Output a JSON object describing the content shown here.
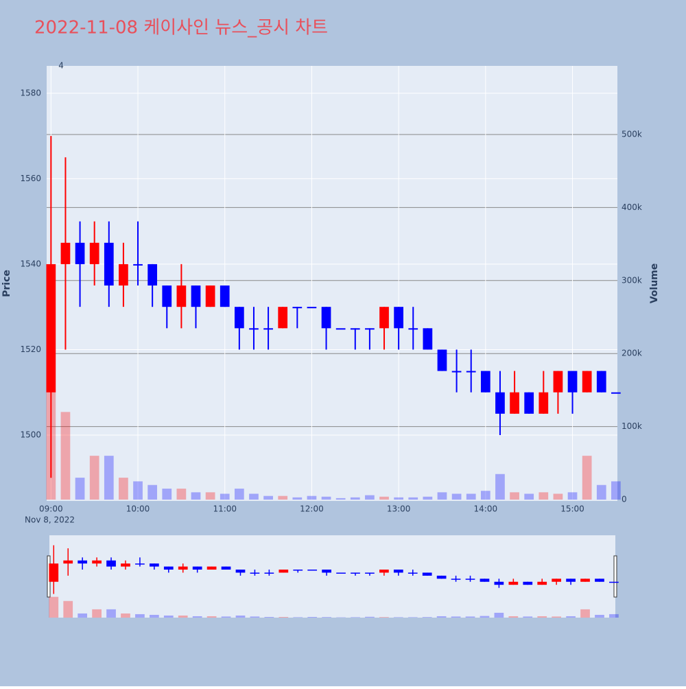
{
  "chart_data": {
    "type": "candlestick",
    "title": "2022-11-08 케이사인 뉴스_공시 차트",
    "x_date_label": "Nov 8, 2022",
    "y_label": "Price",
    "y2_label": "Volume",
    "annotation": {
      "text": "4",
      "x": "09:07"
    },
    "increasing_color": "#ff0000",
    "decreasing_color": "#0000ff",
    "x": [
      "09:00",
      "09:10",
      "09:20",
      "09:30",
      "09:40",
      "09:50",
      "10:00",
      "10:10",
      "10:20",
      "10:30",
      "10:40",
      "10:50",
      "11:00",
      "11:10",
      "11:20",
      "11:30",
      "11:40",
      "11:50",
      "12:00",
      "12:10",
      "12:20",
      "12:30",
      "12:40",
      "12:50",
      "13:00",
      "13:10",
      "13:20",
      "13:30",
      "13:40",
      "13:50",
      "14:00",
      "14:10",
      "14:20",
      "14:30",
      "14:40",
      "14:50",
      "15:00",
      "15:10",
      "15:20",
      "15:30"
    ],
    "open": [
      1510,
      1540,
      1545,
      1540,
      1545,
      1535,
      1540,
      1540,
      1535,
      1530,
      1535,
      1530,
      1535,
      1530,
      1525,
      1525,
      1525,
      1530,
      1530,
      1530,
      1525,
      1525,
      1525,
      1525,
      1530,
      1525,
      1525,
      1520,
      1515,
      1515,
      1515,
      1510,
      1505,
      1510,
      1505,
      1510,
      1515,
      1510,
      1515,
      1510
    ],
    "high": [
      1570,
      1565,
      1550,
      1550,
      1550,
      1545,
      1550,
      1540,
      1535,
      1540,
      1535,
      1535,
      1535,
      1530,
      1530,
      1530,
      1530,
      1530,
      1530,
      1530,
      1525,
      1525,
      1525,
      1530,
      1530,
      1530,
      1525,
      1520,
      1520,
      1520,
      1515,
      1515,
      1515,
      1510,
      1515,
      1515,
      1515,
      1515,
      1515,
      1510
    ],
    "low": [
      1490,
      1520,
      1530,
      1535,
      1530,
      1530,
      1535,
      1530,
      1525,
      1525,
      1525,
      1530,
      1530,
      1520,
      1520,
      1520,
      1525,
      1525,
      1530,
      1520,
      1525,
      1520,
      1520,
      1520,
      1520,
      1520,
      1520,
      1515,
      1510,
      1510,
      1510,
      1500,
      1505,
      1505,
      1505,
      1505,
      1505,
      1510,
      1510,
      1510
    ],
    "close": [
      1540,
      1545,
      1540,
      1545,
      1535,
      1540,
      1540,
      1535,
      1530,
      1535,
      1530,
      1535,
      1530,
      1525,
      1525,
      1525,
      1530,
      1530,
      1530,
      1525,
      1525,
      1525,
      1525,
      1530,
      1525,
      1525,
      1520,
      1515,
      1515,
      1515,
      1510,
      1505,
      1510,
      1505,
      1510,
      1515,
      1510,
      1515,
      1510,
      1510
    ],
    "volume": [
      150000,
      120000,
      30000,
      60000,
      60000,
      30000,
      25000,
      20000,
      15000,
      15000,
      10000,
      10000,
      8000,
      15000,
      8000,
      5000,
      5000,
      3000,
      5000,
      4000,
      2000,
      3000,
      6000,
      4000,
      3000,
      3000,
      4000,
      10000,
      8000,
      8000,
      12000,
      35000,
      10000,
      8000,
      10000,
      8000,
      10000,
      60000,
      20000,
      25000
    ],
    "xlim": [
      "08:57",
      "15:31"
    ],
    "xticks": [
      "09:00",
      "10:00",
      "11:00",
      "12:00",
      "13:00",
      "14:00",
      "15:00"
    ],
    "ylim": [
      1484.9,
      1586.4
    ],
    "yticks": [
      1500,
      1520,
      1540,
      1560,
      1580
    ],
    "y2lim": [
      0,
      594000
    ],
    "y2ticks": [
      0,
      {
        "value": 100000,
        "label": "100k"
      },
      {
        "value": 200000,
        "label": "200k"
      },
      {
        "value": 300000,
        "label": "300k"
      },
      {
        "value": 400000,
        "label": "400k"
      },
      {
        "value": 500000,
        "label": "500k"
      }
    ]
  }
}
